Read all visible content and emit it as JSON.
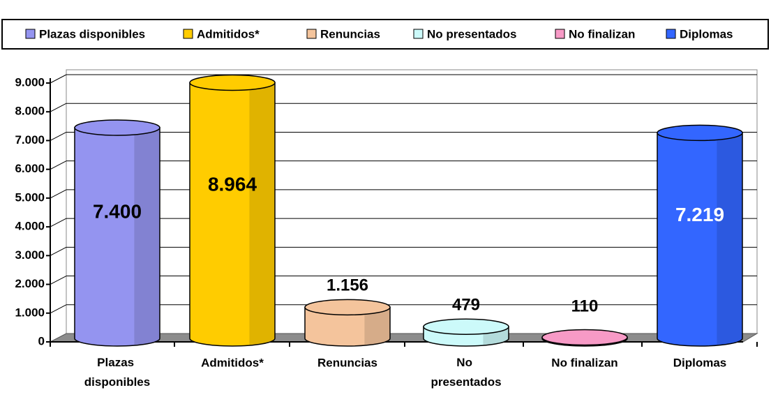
{
  "chart_data": {
    "type": "bar",
    "categories": [
      "Plazas disponibles",
      "Admitidos*",
      "Renuncias",
      "No presentados",
      "No finalizan",
      "Diplomas"
    ],
    "values": [
      7400,
      8964,
      1156,
      479,
      110,
      7219
    ],
    "value_labels": [
      "7.400",
      "8.964",
      "1.156",
      "479",
      "110",
      "7.219"
    ],
    "colors": [
      "#9494f0",
      "#ffcc00",
      "#f4c49c",
      "#ccfafa",
      "#f79ac6",
      "#3366ff"
    ],
    "value_label_colors": [
      "#000000",
      "#000000",
      "#000000",
      "#000000",
      "#000000",
      "#ffffff"
    ],
    "ylim": [
      0,
      9000
    ],
    "yticks": [
      0,
      {
        "value": 1000,
        "label": "1.000"
      },
      {
        "value": 2000,
        "label": "2.000"
      },
      {
        "value": 3000,
        "label": "3.000"
      },
      {
        "value": 4000,
        "label": "4.000"
      },
      {
        "value": 5000,
        "label": "5.000"
      },
      {
        "value": 6000,
        "label": "6.000"
      },
      {
        "value": 7000,
        "label": "7.000"
      },
      {
        "value": 8000,
        "label": "8.000"
      },
      {
        "value": 9000,
        "label": "9.000"
      }
    ],
    "grid": true,
    "legend": "top"
  }
}
